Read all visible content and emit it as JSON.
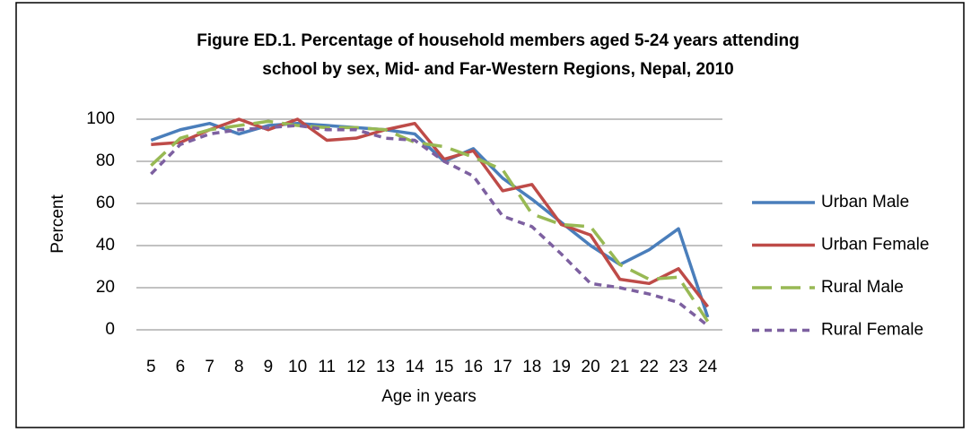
{
  "chart_data": {
    "type": "line",
    "title": [
      "Figure ED.1. Percentage of household members  aged 5-24 years attending",
      "school by sex, Mid- and Far-Western Regions, Nepal, 2010"
    ],
    "ylabel": "Percent",
    "xlabel": "Age in years",
    "categories": [
      5,
      6,
      7,
      8,
      9,
      10,
      11,
      12,
      13,
      14,
      15,
      16,
      17,
      18,
      19,
      20,
      21,
      22,
      23,
      24
    ],
    "ylim": [
      0,
      100
    ],
    "yticks": [
      0,
      20,
      40,
      60,
      80,
      100
    ],
    "grid": true,
    "legend": "right",
    "series": [
      {
        "name": "Urban Male",
        "color": "#4a7ebb",
        "dash": "solid",
        "values": [
          90,
          95,
          98,
          93,
          97,
          98,
          97,
          96,
          95,
          93,
          80,
          86,
          72,
          62,
          51,
          40,
          31,
          38,
          48,
          6
        ]
      },
      {
        "name": "Urban Female",
        "color": "#be4b48",
        "dash": "solid",
        "values": [
          88,
          89,
          95,
          100,
          95,
          100,
          90,
          91,
          95,
          98,
          81,
          85,
          66,
          69,
          50,
          45,
          24,
          22,
          29,
          11
        ]
      },
      {
        "name": "Rural Male",
        "color": "#98b954",
        "dash": "long",
        "values": [
          78,
          91,
          95,
          97,
          99,
          97,
          96,
          96,
          95,
          89,
          87,
          82,
          76,
          55,
          50,
          49,
          31,
          24,
          25,
          4
        ]
      },
      {
        "name": "Rural Female",
        "color": "#7d60a0",
        "dash": "short",
        "values": [
          74,
          88,
          93,
          95,
          96,
          97,
          95,
          95,
          91,
          90,
          80,
          73,
          54,
          49,
          36,
          22,
          20,
          17,
          13,
          2
        ]
      }
    ]
  }
}
